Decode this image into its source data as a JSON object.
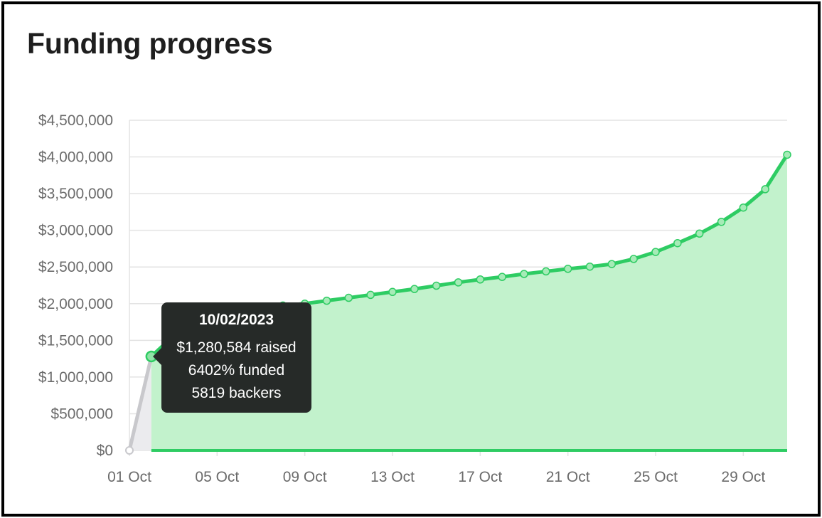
{
  "title": "Funding progress",
  "colors": {
    "line": "#2ecc63",
    "area": "#c2f2cc",
    "prefill_line": "#c8c8cc",
    "prefill_area": "#ebebee",
    "grid": "#e3e3e3",
    "tooltip_bg": "#262a28"
  },
  "tooltip": {
    "date": "10/02/2023",
    "raised": "$1,280,584 raised",
    "funded": "6402% funded",
    "backers": "5819 backers"
  },
  "chart_data": {
    "type": "area",
    "title": "Funding progress",
    "xlabel": "",
    "ylabel": "",
    "ylim": [
      0,
      4500000
    ],
    "grid": true,
    "y_ticks": [
      0,
      500000,
      1000000,
      1500000,
      2000000,
      2500000,
      3000000,
      3500000,
      4000000,
      4500000
    ],
    "y_tick_labels": [
      "$0",
      "$500,000",
      "$1,000,000",
      "$1,500,000",
      "$2,000,000",
      "$2,500,000",
      "$3,000,000",
      "$3,500,000",
      "$4,000,000",
      "$4,500,000"
    ],
    "x_tick_labels": [
      "01 Oct",
      "05 Oct",
      "09 Oct",
      "13 Oct",
      "17 Oct",
      "21 Oct",
      "25 Oct",
      "29 Oct"
    ],
    "x_tick_dates": [
      "2023-10-01",
      "2023-10-05",
      "2023-10-09",
      "2023-10-13",
      "2023-10-17",
      "2023-10-21",
      "2023-10-25",
      "2023-10-29"
    ],
    "x": [
      "2023-10-01",
      "2023-10-02",
      "2023-10-03",
      "2023-10-04",
      "2023-10-05",
      "2023-10-06",
      "2023-10-07",
      "2023-10-08",
      "2023-10-09",
      "2023-10-10",
      "2023-10-11",
      "2023-10-12",
      "2023-10-13",
      "2023-10-14",
      "2023-10-15",
      "2023-10-16",
      "2023-10-17",
      "2023-10-18",
      "2023-10-19",
      "2023-10-20",
      "2023-10-21",
      "2023-10-22",
      "2023-10-23",
      "2023-10-24",
      "2023-10-25",
      "2023-10-26",
      "2023-10-27",
      "2023-10-28",
      "2023-10-29",
      "2023-10-30",
      "2023-10-31"
    ],
    "values": [
      0,
      1280584,
      1560000,
      1780000,
      1880000,
      1920000,
      1950000,
      1975000,
      2000000,
      2040000,
      2080000,
      2120000,
      2160000,
      2200000,
      2245000,
      2290000,
      2330000,
      2365000,
      2405000,
      2440000,
      2475000,
      2505000,
      2540000,
      2610000,
      2705000,
      2825000,
      2955000,
      3115000,
      3310000,
      3560000,
      4030000
    ],
    "highlighted_point": "2023-10-02"
  }
}
